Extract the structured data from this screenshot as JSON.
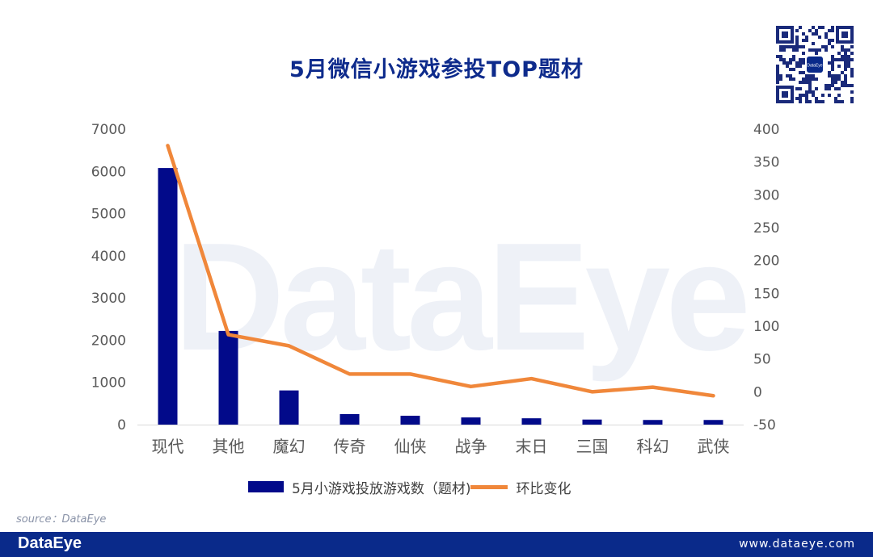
{
  "title": "5月微信小游戏参投TOP题材",
  "source": "source：DataEye",
  "footer": {
    "logo": "DataEye",
    "url": "www.dataeye.com"
  },
  "watermark": "DataEye",
  "colors": {
    "bar": "#020a8a",
    "line": "#f0873a",
    "title": "#0e2b8c",
    "footer": "#0a2a8a"
  },
  "qr_icon": "qr-code-icon",
  "qr_logo_text": "DataEye",
  "chart_data": {
    "type": "bar",
    "categories": [
      "现代",
      "其他",
      "魔幻",
      "传奇",
      "仙侠",
      "战争",
      "末日",
      "三国",
      "科幻",
      "武侠"
    ],
    "series": [
      {
        "name": "5月小游戏投放游戏数（题材)",
        "type": "bar",
        "axis": "left",
        "values": [
          6080,
          2220,
          810,
          250,
          210,
          170,
          150,
          120,
          110,
          110
        ]
      },
      {
        "name": "环比变化",
        "type": "line",
        "axis": "right",
        "values": [
          375,
          87,
          70,
          27,
          27,
          8,
          20,
          0,
          7,
          -6
        ]
      }
    ],
    "y_left": {
      "min": 0,
      "max": 7000,
      "ticks": [
        0,
        1000,
        2000,
        3000,
        4000,
        5000,
        6000,
        7000
      ]
    },
    "y_right": {
      "min": -50,
      "max": 400,
      "ticks": [
        -50,
        0,
        50,
        100,
        150,
        200,
        250,
        300,
        350,
        400
      ]
    },
    "grid": false,
    "legend": "bottom"
  }
}
